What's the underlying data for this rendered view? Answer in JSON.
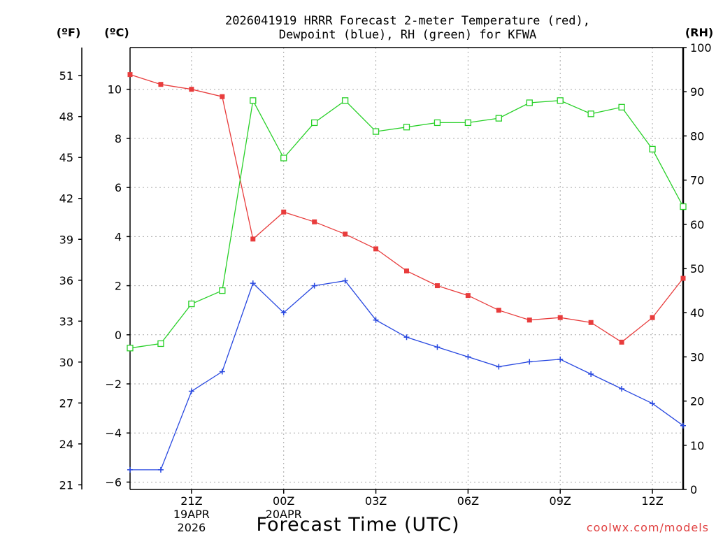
{
  "chart_data": {
    "type": "line",
    "title_line1": "2026041919 HRRR Forecast 2-meter Temperature (red),",
    "title_line2": "Dewpoint (blue), RH (green) for KFWA",
    "xlabel": "Forecast Time (UTC)",
    "credit": "coolwx.com/models",
    "units": {
      "f": "(ºF)",
      "c": "(ºC)",
      "rh": "(RH)"
    },
    "x_hours": [
      19,
      20,
      21,
      22,
      23,
      24,
      25,
      26,
      27,
      28,
      29,
      30,
      31,
      32,
      33,
      34,
      35,
      36,
      37
    ],
    "x_range": [
      19,
      37
    ],
    "x_ticks": [
      {
        "hour": 21,
        "lines": [
          "21Z",
          "19APR",
          "2026"
        ]
      },
      {
        "hour": 24,
        "lines": [
          "00Z",
          "20APR"
        ]
      },
      {
        "hour": 27,
        "lines": [
          "03Z"
        ]
      },
      {
        "hour": 30,
        "lines": [
          "06Z"
        ]
      },
      {
        "hour": 33,
        "lines": [
          "09Z"
        ]
      },
      {
        "hour": 36,
        "lines": [
          "12Z"
        ]
      }
    ],
    "celsius_axis": {
      "min": -6.3,
      "max": 11.7,
      "ticks": [
        -6,
        -4,
        -2,
        0,
        2,
        4,
        6,
        8,
        10
      ]
    },
    "fahrenheit_ticks": [
      21,
      24,
      27,
      30,
      33,
      36,
      39,
      42,
      45,
      48,
      51
    ],
    "rh_axis": {
      "min": 0,
      "max": 100,
      "ticks": [
        0,
        10,
        20,
        30,
        40,
        50,
        60,
        70,
        80,
        90,
        100
      ]
    },
    "series": [
      {
        "name": "Temperature",
        "axis": "celsius",
        "color": "#e83c3c",
        "marker": "filled-square",
        "values": [
          10.6,
          10.2,
          10.0,
          9.7,
          3.9,
          5.0,
          4.6,
          4.1,
          3.5,
          2.6,
          2.0,
          1.6,
          1.0,
          0.6,
          0.7,
          0.5,
          -0.3,
          0.7,
          2.3
        ]
      },
      {
        "name": "Dewpoint",
        "axis": "celsius",
        "color": "#2848e0",
        "marker": "plus",
        "values": [
          -5.5,
          -5.5,
          -2.3,
          -1.5,
          2.1,
          0.9,
          2.0,
          2.2,
          0.6,
          -0.1,
          -0.5,
          -0.9,
          -1.3,
          -1.1,
          -1.0,
          -1.6,
          -2.2,
          -2.8,
          -3.7
        ]
      },
      {
        "name": "RH",
        "axis": "rh",
        "color": "#28d028",
        "marker": "open-square",
        "values": [
          32,
          33,
          42,
          45,
          88,
          75,
          83,
          88,
          81,
          82,
          83,
          83,
          84,
          87.5,
          88,
          85,
          86.5,
          77,
          64
        ]
      }
    ]
  }
}
